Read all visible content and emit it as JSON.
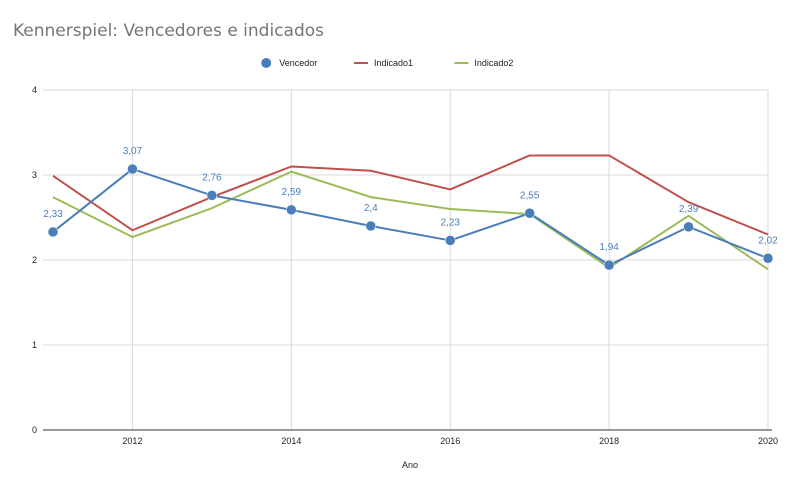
{
  "chart_data": {
    "type": "line",
    "title": "Kennerspiel: Vencedores e indicados",
    "xlabel": "Ano",
    "ylabel": "",
    "xlim": [
      2011,
      2020
    ],
    "ylim": [
      0,
      4
    ],
    "grid": true,
    "legend_position": "top-center",
    "x": [
      2011,
      2012,
      2013,
      2014,
      2015,
      2016,
      2017,
      2018,
      2019,
      2020
    ],
    "x_ticks": [
      "2012",
      "2014",
      "2016",
      "2018",
      "2020"
    ],
    "y_ticks": [
      "0",
      "1",
      "2",
      "3",
      "4"
    ],
    "series": [
      {
        "name": "Vencedor",
        "style": "line-marker",
        "color": "#4a7ebb",
        "values": [
          2.33,
          3.07,
          2.76,
          2.59,
          2.4,
          2.23,
          2.55,
          1.94,
          2.39,
          2.02
        ],
        "labels": [
          "2,33",
          "3,07",
          "2,76",
          "2,59",
          "2,4",
          "2,23",
          "2,55",
          "1,94",
          "2,39",
          "2,02"
        ]
      },
      {
        "name": "Indicado1",
        "style": "line",
        "color": "#c0504d",
        "values": [
          2.99,
          2.35,
          2.74,
          3.1,
          3.05,
          2.83,
          3.23,
          3.23,
          2.68,
          2.3
        ]
      },
      {
        "name": "Indicado2",
        "style": "line",
        "color": "#9bbb59",
        "values": [
          2.74,
          2.27,
          2.61,
          3.04,
          2.74,
          2.6,
          2.54,
          1.91,
          2.52,
          1.89
        ]
      }
    ]
  }
}
